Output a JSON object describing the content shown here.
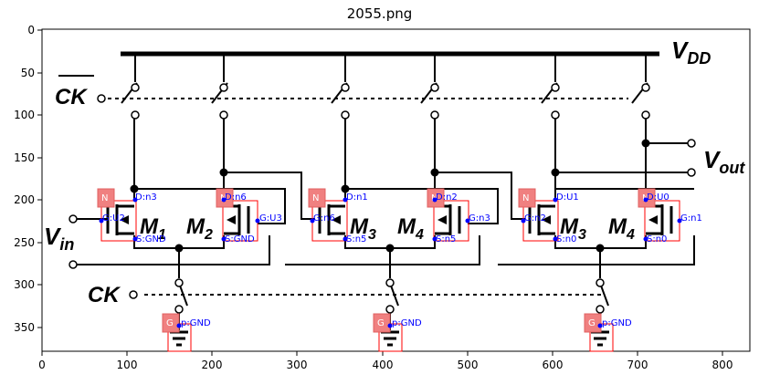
{
  "figure": {
    "title": "2055.png",
    "x_ticks": [
      "0",
      "100",
      "200",
      "300",
      "400",
      "500",
      "600",
      "700",
      "800"
    ],
    "y_ticks": [
      "0",
      "50",
      "100",
      "150",
      "200",
      "250",
      "300",
      "350"
    ]
  },
  "circuit": {
    "vdd_label": "V",
    "vdd_sub": "DD",
    "ck_bar_label": "CK",
    "ck_label": "CK",
    "vin_label": "V",
    "vin_sub": "in",
    "vout_label": "V",
    "vout_sub": "out",
    "transistors": [
      {
        "label": "M",
        "sub": "1"
      },
      {
        "label": "M",
        "sub": "2"
      },
      {
        "label": "M",
        "sub": "3"
      },
      {
        "label": "M",
        "sub": "4"
      },
      {
        "label": "M",
        "sub": "3"
      },
      {
        "label": "M",
        "sub": "4"
      }
    ]
  },
  "annotations": {
    "n_tag": "N",
    "g_tag": "G",
    "t1": {
      "d": "D:n3",
      "g": "G:U2",
      "s": "S:GND"
    },
    "t2": {
      "d": "D:n6",
      "g": "G:U3",
      "s": "S:GND"
    },
    "t3": {
      "d": "D:n1",
      "g": "G:n6",
      "s": "S:n5"
    },
    "t4": {
      "d": "D:n2",
      "g": "G:n3",
      "s": "S:n5"
    },
    "t5": {
      "d": "D:U1",
      "g": "G:n2",
      "s": "S:n0"
    },
    "t6": {
      "d": "D:U0",
      "g": "G:n1",
      "s": "S:n0"
    },
    "gnd1": "p:GND",
    "gnd2": "p:GND",
    "gnd3": "p:GND"
  },
  "colors": {
    "annotation_text": "#0000ff",
    "box_stroke": "#ff0000",
    "tag_fill": "#f08080"
  }
}
